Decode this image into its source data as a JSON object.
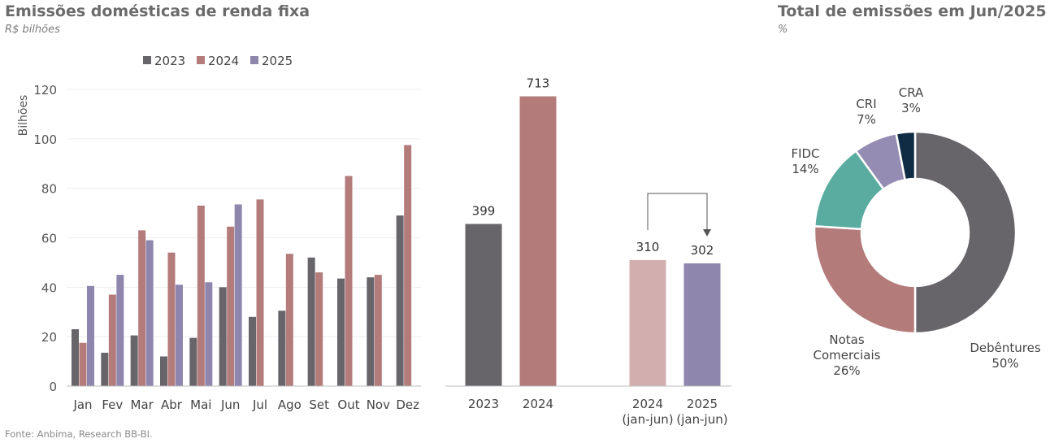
{
  "left": {
    "title": "Emissões domésticas de renda fixa",
    "subtitle": "R$ bilhões"
  },
  "right": {
    "title": "Total de emissões em Jun/2025",
    "subtitle": "%"
  },
  "source": "Fonte: Anbima, Research BB-BI.",
  "colors": {
    "s2023": "#67656a",
    "s2024": "#b47b7b",
    "s2025": "#8e86ad",
    "s2024_jan_jun": "#d3aeae",
    "debentures": "#67656a",
    "notas": "#b47b7b",
    "fidc": "#5aaca0",
    "cri": "#958cb3",
    "cra": "#0f2c44"
  },
  "chart_data": [
    {
      "type": "bar",
      "categories": [
        "Jan",
        "Fev",
        "Mar",
        "Abr",
        "Mai",
        "Jun",
        "Jul",
        "Ago",
        "Set",
        "Out",
        "Nov",
        "Dez"
      ],
      "series": [
        {
          "name": "2023",
          "values": [
            23,
            13.5,
            20.5,
            12,
            19.5,
            40,
            28,
            30.5,
            52,
            43.5,
            44,
            69
          ]
        },
        {
          "name": "2024",
          "values": [
            17.5,
            37,
            63,
            54,
            73,
            64.5,
            75.5,
            53.5,
            46,
            85,
            45,
            97.5
          ]
        },
        {
          "name": "2025",
          "values": [
            40.5,
            45,
            59,
            41,
            42,
            73.5,
            null,
            null,
            null,
            null,
            null,
            null
          ]
        }
      ],
      "ylabel": "Bilhões",
      "yticks": [
        0,
        20,
        40,
        60,
        80,
        100,
        120
      ],
      "ylim": [
        0,
        125
      ],
      "legend": "top"
    },
    {
      "type": "bar",
      "categories": [
        {
          "line1": "2023",
          "line2": ""
        },
        {
          "line1": "2024",
          "line2": ""
        },
        {
          "line1": "2024",
          "line2": "(jan-jun)"
        },
        {
          "line1": "2025",
          "line2": "(jan-jun)"
        }
      ],
      "values": [
        399,
        713,
        310,
        302
      ],
      "value_labels": [
        "399",
        "713",
        "310",
        "302"
      ]
    },
    {
      "type": "pie",
      "labels": [
        {
          "lines": [
            "Debêntures"
          ],
          "pct": "50%",
          "value": 50
        },
        {
          "lines": [
            "Notas",
            "Comerciais"
          ],
          "pct": "26%",
          "value": 26
        },
        {
          "lines": [
            "FIDC"
          ],
          "pct": "14%",
          "value": 14
        },
        {
          "lines": [
            "CRI"
          ],
          "pct": "7%",
          "value": 7
        },
        {
          "lines": [
            "CRA"
          ],
          "pct": "3%",
          "value": 3
        }
      ]
    }
  ]
}
